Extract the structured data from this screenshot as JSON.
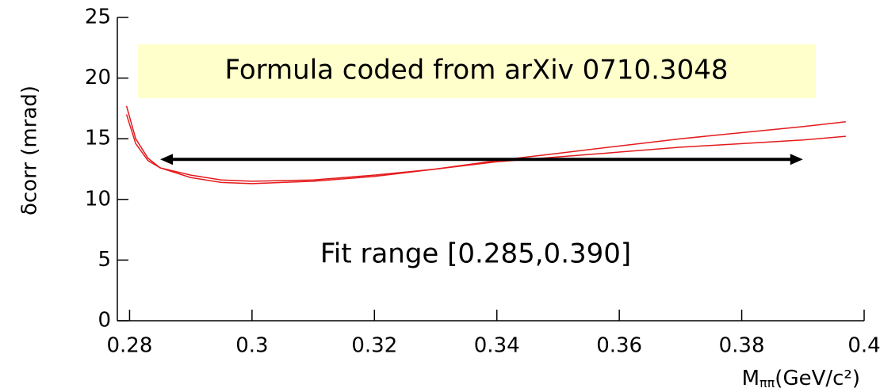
{
  "chart_data": {
    "type": "line",
    "y_label": "δcorr (mrad)",
    "x_label": "M",
    "x_label_sub": "ππ",
    "x_label_rest": "(GeV/c²)",
    "annotations": [
      "Formula coded from arXiv 0710.3048",
      "Fit range [0.285,0.390]"
    ],
    "arrow": {
      "x": [
        0.285,
        0.39
      ],
      "y": 13.3
    },
    "x": [
      0.2795,
      0.281,
      0.283,
      0.285,
      0.29,
      0.295,
      0.3,
      0.31,
      0.32,
      0.33,
      0.34,
      0.35,
      0.36,
      0.37,
      0.38,
      0.39,
      0.397
    ],
    "series": [
      {
        "color": "#e41a1c",
        "values": [
          17.7,
          15.0,
          13.4,
          12.6,
          11.8,
          11.4,
          11.3,
          11.5,
          11.9,
          12.5,
          13.2,
          13.8,
          14.4,
          15.0,
          15.5,
          16.0,
          16.4
        ]
      },
      {
        "color": "#e41a1c",
        "values": [
          17.0,
          14.6,
          13.2,
          12.6,
          12.0,
          11.6,
          11.5,
          11.6,
          12.0,
          12.5,
          13.1,
          13.5,
          13.9,
          14.3,
          14.6,
          14.9,
          15.2
        ]
      }
    ],
    "xlim": [
      0.278,
      0.4
    ],
    "xticks": [
      0.28,
      0.3,
      0.32,
      0.34,
      0.36,
      0.38,
      0.4
    ],
    "ylim": [
      0,
      25
    ],
    "yticks": [
      0,
      5,
      10,
      15,
      20,
      25
    ]
  }
}
